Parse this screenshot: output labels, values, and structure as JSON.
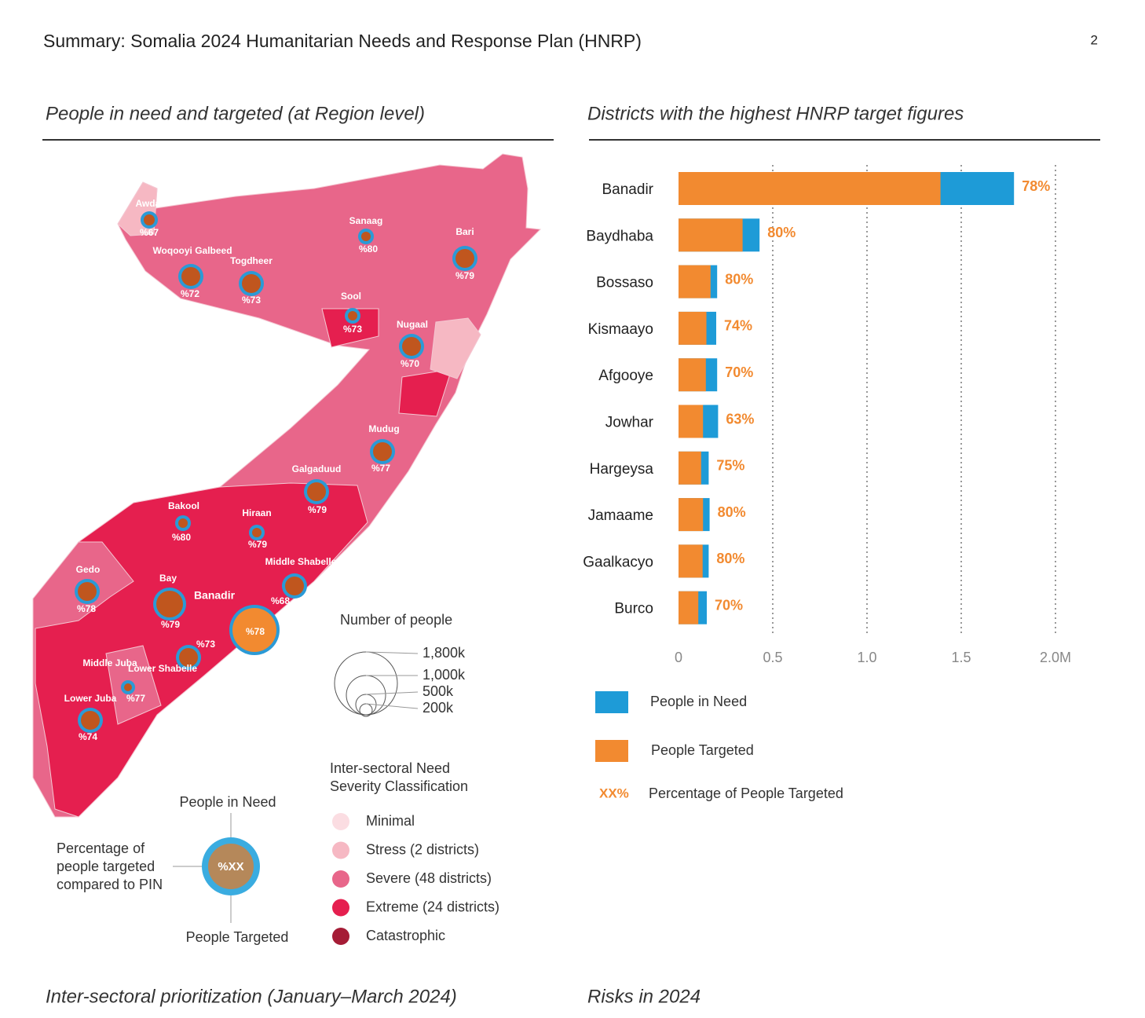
{
  "header": {
    "title": "Summary: Somalia 2024 Humanitarian Needs and Response Plan (HNRP)",
    "page_number": "2"
  },
  "map_section": {
    "title": "People in need and targeted (at Region level)"
  },
  "map": {
    "regions": [
      {
        "name": "Awdal",
        "label": "%67"
      },
      {
        "name": "Woqooyi Galbeed",
        "label": "%72"
      },
      {
        "name": "Togdheer",
        "label": "%73"
      },
      {
        "name": "Sanaag",
        "label": "%80"
      },
      {
        "name": "Bari",
        "label": "%79"
      },
      {
        "name": "Sool",
        "label": "%73"
      },
      {
        "name": "Nugaal",
        "label": "%70"
      },
      {
        "name": "Mudug",
        "label": "%77"
      },
      {
        "name": "Galgaduud",
        "label": "%79"
      },
      {
        "name": "Bakool",
        "label": "%80"
      },
      {
        "name": "Hiraan",
        "label": "%79"
      },
      {
        "name": "Middle Shabelle",
        "label": "%68"
      },
      {
        "name": "Gedo",
        "label": "%78"
      },
      {
        "name": "Bay",
        "label": "%79"
      },
      {
        "name": "Banadir",
        "label": "%78"
      },
      {
        "name": "Lower Shabelle",
        "label": "%73"
      },
      {
        "name": "Middle Juba",
        "label": "%77"
      },
      {
        "name": "Lower Juba",
        "label": "%74"
      }
    ],
    "size_legend": {
      "title": "Number of people",
      "labels": [
        "1,800k",
        "1,000k",
        "500k",
        "200k"
      ]
    },
    "severity": {
      "title": [
        "Inter-sectoral Need",
        "Severity Classification"
      ],
      "items": [
        {
          "name": "Minimal",
          "color": "#fbdde2"
        },
        {
          "name": "Stress (2 districts)",
          "color": "#f6b8c3"
        },
        {
          "name": "Severe (48 districts)",
          "color": "#e8668a"
        },
        {
          "name": "Extreme (24 districts)",
          "color": "#e51f4f"
        },
        {
          "name": "Catastrophic",
          "color": "#a51c36"
        }
      ]
    },
    "key": {
      "pin": "People in Need",
      "percentage": [
        "Percentage of",
        "people targeted",
        "compared to PIN"
      ],
      "targeted": "People Targeted",
      "symbol": "%XX"
    }
  },
  "chart_section": {
    "title": "Districts with the highest HNRP target figures"
  },
  "chart_data": {
    "type": "bar",
    "orientation": "horizontal",
    "categories": [
      "Banadir",
      "Baydhaba",
      "Bossaso",
      "Kismaayo",
      "Afgooye",
      "Jowhar",
      "Hargeysa",
      "Jamaame",
      "Gaalkacyo",
      "Burco"
    ],
    "series": [
      {
        "name": "People in Need",
        "color": "#1e9bd7",
        "values": [
          1.78,
          0.43,
          0.205,
          0.2,
          0.205,
          0.21,
          0.16,
          0.165,
          0.16,
          0.15
        ]
      },
      {
        "name": "People Targeted",
        "color": "#f28a30",
        "values": [
          1.39,
          0.34,
          0.17,
          0.148,
          0.145,
          0.13,
          0.12,
          0.13,
          0.128,
          0.105
        ]
      },
      {
        "name": "Percentage of People Targeted",
        "color": "#f28a30",
        "symbol": "XX%",
        "values": [
          78,
          80,
          80,
          74,
          70,
          63,
          75,
          80,
          80,
          70
        ],
        "value_labels": [
          "78%",
          "80%",
          "80%",
          "74%",
          "70%",
          "63%",
          "75%",
          "80%",
          "80%",
          "70%"
        ]
      }
    ],
    "xlim": [
      0,
      2
    ],
    "xticks": [
      0,
      0.5,
      {
        "value": 1,
        "label": "1.0"
      },
      1.5,
      {
        "value": 2,
        "label": "2.0M"
      }
    ],
    "grid": true
  },
  "footer": {
    "left_title": "Inter-sectoral prioritization (January–March 2024)",
    "right_title": "Risks in 2024"
  }
}
